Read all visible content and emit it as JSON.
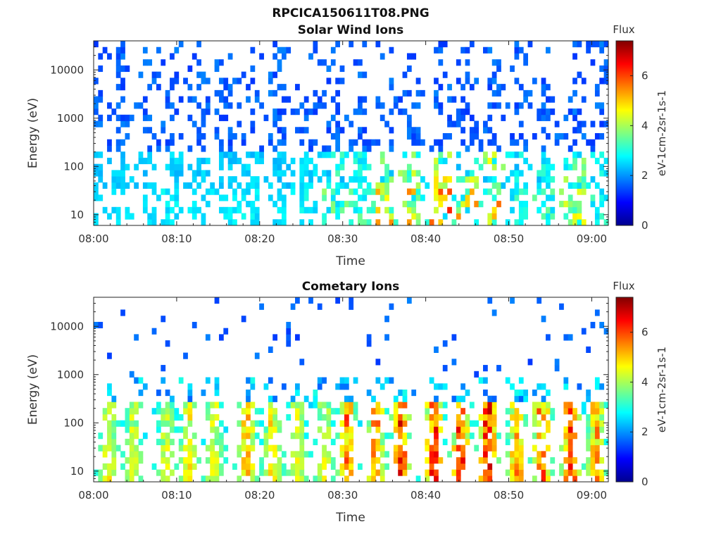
{
  "figure": {
    "title": "RPCICA150611T08.PNG"
  },
  "colorbar": {
    "title": "Flux",
    "label": "eV-1cm-2sr-1s-1",
    "ticks": [
      "0",
      "2",
      "4",
      "6"
    ],
    "range": [
      0,
      7.4
    ]
  },
  "chart_data": [
    {
      "type": "heatmap",
      "title": "Solar Wind Ions",
      "xlabel": "Time",
      "ylabel": "Energy (eV)",
      "yscale": "log",
      "ylim": [
        6,
        40000
      ],
      "x_range": [
        "08:00",
        "09:02"
      ],
      "x_ticks": [
        "08:00",
        "08:10",
        "08:20",
        "08:30",
        "08:40",
        "08:50",
        "09:00"
      ],
      "y_ticks": [
        "10",
        "100",
        "1000",
        "10000"
      ],
      "colorscale": "jet",
      "sweeps_min": [
        0.3,
        3.3,
        6.5,
        9.7,
        12.8,
        16.0,
        19.2,
        22.5,
        25.8,
        29.0,
        32.2,
        35.3,
        38.5,
        41.7,
        45.0,
        48.2,
        51.4,
        54.6,
        57.8,
        61.0
      ],
      "cmax_by_sweep": [
        2.6,
        2.8,
        2.7,
        2.9,
        2.8,
        2.8,
        2.9,
        2.9,
        3.0,
        4.0,
        3.6,
        5.5,
        5.6,
        6.3,
        5.5,
        6.0,
        3.4,
        3.6,
        4.9,
        3.4
      ]
    },
    {
      "type": "heatmap",
      "title": "Cometary Ions",
      "xlabel": "Time",
      "ylabel": "Energy (eV)",
      "yscale": "log",
      "ylim": [
        6,
        40000
      ],
      "x_range": [
        "08:00",
        "09:02"
      ],
      "x_ticks": [
        "08:00",
        "08:10",
        "08:20",
        "08:30",
        "08:40",
        "08:50",
        "09:00"
      ],
      "y_ticks": [
        "10",
        "100",
        "1000",
        "10000"
      ],
      "colorscale": "jet",
      "sweeps_min": [
        1.8,
        4.8,
        8.8,
        11.5,
        14.5,
        18.5,
        21.5,
        24.5,
        27.8,
        30.5,
        34.0,
        37.0,
        41.0,
        44.2,
        47.5,
        51.0,
        54.0,
        57.5,
        60.5
      ],
      "cmax_by_sweep": [
        5.0,
        4.7,
        4.8,
        5.2,
        4.8,
        5.8,
        5.3,
        4.8,
        4.8,
        6.3,
        6.2,
        7.0,
        7.2,
        7.0,
        7.2,
        6.0,
        6.5,
        6.9,
        6.0
      ]
    }
  ]
}
